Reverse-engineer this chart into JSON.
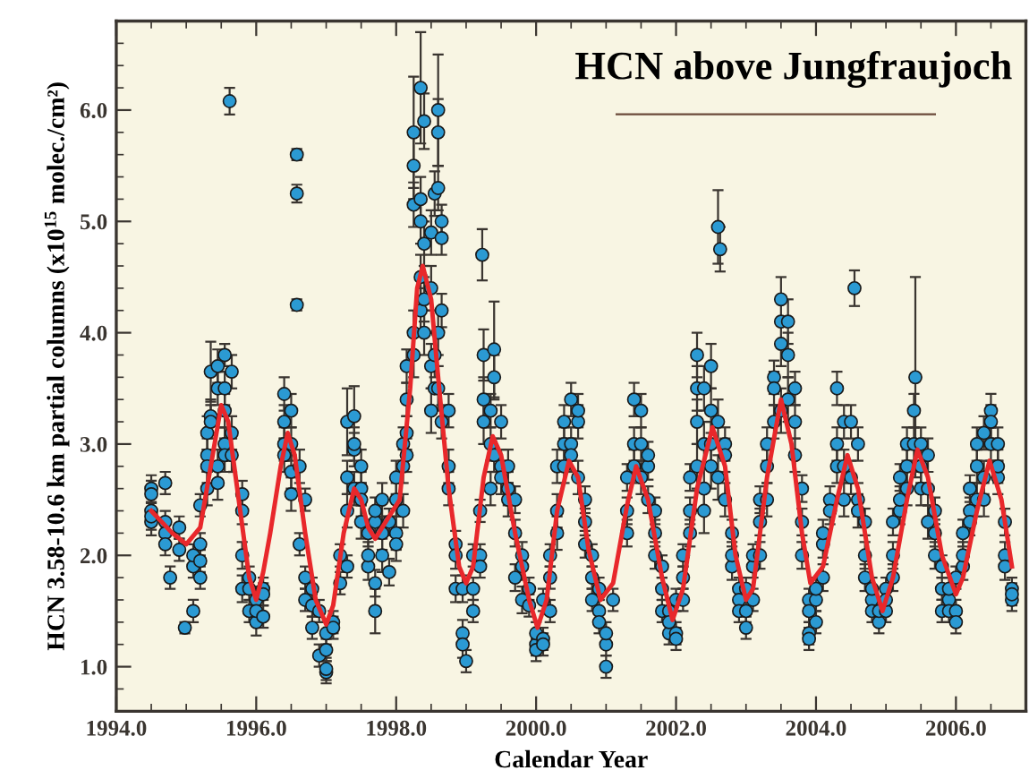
{
  "chart_data": {
    "type": "scatter",
    "title": "HCN above Jungfraujoch",
    "xlabel": "Calendar Year",
    "ylabel": "HCN 3.58-10.6 km partial columns (x10$^{15}$ molec./cm²)",
    "xlim": [
      1994.0,
      2007.0
    ],
    "ylim": [
      0.6,
      6.8
    ],
    "xticks": [
      {
        "value": 1994,
        "label": "1994.0"
      },
      {
        "value": 1996,
        "label": "1996.0"
      },
      {
        "value": 1998,
        "label": "1998.0"
      },
      {
        "value": 2000,
        "label": "2000.0"
      },
      {
        "value": 2002,
        "label": "2002.0"
      },
      {
        "value": 2004,
        "label": "2004.0"
      },
      {
        "value": 2006,
        "label": "2006.0"
      }
    ],
    "yticks": [
      {
        "value": 1,
        "label": "1.0"
      },
      {
        "value": 2,
        "label": "2.0"
      },
      {
        "value": 3,
        "label": "3.0"
      },
      {
        "value": 4,
        "label": "4.0"
      },
      {
        "value": 5,
        "label": "5.0"
      },
      {
        "value": 6,
        "label": "6.0"
      }
    ],
    "grid": false,
    "series": [
      {
        "color": "#2b9ad3",
        "marker": "circle",
        "x": [
          1994.5,
          1994.5,
          1994.5,
          1994.5,
          1994.5,
          1994.7,
          1994.7,
          1994.7,
          1994.7,
          1994.77,
          1994.9,
          1994.9,
          1994.98,
          1995.1,
          1995.1,
          1995.1,
          1995.2,
          1995.2,
          1995.2,
          1995.2,
          1995.3,
          1995.3,
          1995.3,
          1995.3,
          1995.35,
          1995.35,
          1995.35,
          1995.45,
          1995.45,
          1995.45,
          1995.45,
          1995.55,
          1995.55,
          1995.55,
          1995.55,
          1995.55,
          1995.62,
          1995.65,
          1995.65,
          1995.65,
          1995.8,
          1995.8,
          1995.8,
          1995.8,
          1995.9,
          1995.9,
          1995.9,
          1996.0,
          1996.0,
          1996.0,
          1996.1,
          1996.1,
          1996.1,
          1996.4,
          1996.4,
          1996.4,
          1996.4,
          1996.5,
          1996.5,
          1996.5,
          1996.5,
          1996.58,
          1996.58,
          1996.58,
          1996.62,
          1996.62,
          1996.7,
          1996.7,
          1996.7,
          1996.8,
          1996.8,
          1996.8,
          1996.9,
          1996.9,
          1997.0,
          1997.0,
          1997.0,
          1997.0,
          1997.1,
          1997.1,
          1997.2,
          1997.2,
          1997.3,
          1997.3,
          1997.3,
          1997.3,
          1997.4,
          1997.4,
          1997.4,
          1997.4,
          1997.5,
          1997.5,
          1997.5,
          1997.5,
          1997.6,
          1997.6,
          1997.6,
          1997.7,
          1997.7,
          1997.7,
          1997.7,
          1997.8,
          1997.8,
          1997.8,
          1997.9,
          1997.9,
          1998.0,
          1998.0,
          1998.0,
          1998.0,
          1998.1,
          1998.1,
          1998.1,
          1998.15,
          1998.15,
          1998.15,
          1998.15,
          1998.25,
          1998.25,
          1998.25,
          1998.25,
          1998.25,
          1998.35,
          1998.35,
          1998.35,
          1998.35,
          1998.35,
          1998.4,
          1998.4,
          1998.4,
          1998.4,
          1998.5,
          1998.5,
          1998.5,
          1998.5,
          1998.55,
          1998.55,
          1998.55,
          1998.6,
          1998.6,
          1998.6,
          1998.6,
          1998.6,
          1998.65,
          1998.65,
          1998.65,
          1998.65,
          1998.75,
          1998.75,
          1998.75,
          1998.85,
          1998.85,
          1998.85,
          1998.95,
          1998.95,
          1998.95,
          1999.0,
          1999.1,
          1999.1,
          1999.1,
          1999.2,
          1999.2,
          1999.2,
          1999.23,
          1999.25,
          1999.25,
          1999.25,
          1999.35,
          1999.35,
          1999.35,
          1999.4,
          1999.4,
          1999.4,
          1999.5,
          1999.5,
          1999.5,
          1999.6,
          1999.6,
          1999.6,
          1999.7,
          1999.7,
          1999.7,
          1999.8,
          1999.8,
          1999.8,
          1999.9,
          1999.9,
          2000.0,
          2000.0,
          2000.0,
          2000.1,
          2000.1,
          2000.1,
          2000.2,
          2000.2,
          2000.2,
          2000.3,
          2000.3,
          2000.3,
          2000.4,
          2000.4,
          2000.4,
          2000.5,
          2000.5,
          2000.5,
          2000.6,
          2000.6,
          2000.6,
          2000.7,
          2000.7,
          2000.7,
          2000.8,
          2000.8,
          2000.8,
          2000.9,
          2000.9,
          2000.9,
          2001.0,
          2001.0,
          2001.0,
          2001.1,
          2001.3,
          2001.3,
          2001.3,
          2001.4,
          2001.4,
          2001.4,
          2001.5,
          2001.5,
          2001.5,
          2001.6,
          2001.6,
          2001.6,
          2001.7,
          2001.7,
          2001.7,
          2001.8,
          2001.8,
          2001.8,
          2001.9,
          2001.9,
          2001.9,
          2002.0,
          2002.0,
          2002.0,
          2002.1,
          2002.1,
          2002.1,
          2002.2,
          2002.2,
          2002.2,
          2002.3,
          2002.3,
          2002.3,
          2002.3,
          2002.4,
          2002.4,
          2002.4,
          2002.4,
          2002.5,
          2002.5,
          2002.5,
          2002.5,
          2002.6,
          2002.63,
          2002.6,
          2002.6,
          2002.7,
          2002.7,
          2002.7,
          2002.8,
          2002.8,
          2002.8,
          2002.9,
          2002.9,
          2002.9,
          2003.0,
          2003.0,
          2003.0,
          2003.1,
          2003.1,
          2003.1,
          2003.2,
          2003.2,
          2003.2,
          2003.3,
          2003.3,
          2003.3,
          2003.4,
          2003.4,
          2003.4,
          2003.5,
          2003.5,
          2003.5,
          2003.5,
          2003.6,
          2003.6,
          2003.6,
          2003.7,
          2003.7,
          2003.7,
          2003.8,
          2003.8,
          2003.8,
          2003.9,
          2003.9,
          2003.9,
          2003.9,
          2004.0,
          2004.0,
          2004.0,
          2004.1,
          2004.1,
          2004.1,
          2004.2,
          2004.2,
          2004.3,
          2004.3,
          2004.3,
          2004.4,
          2004.4,
          2004.4,
          2004.55,
          2004.5,
          2004.5,
          2004.6,
          2004.6,
          2004.6,
          2004.7,
          2004.7,
          2004.7,
          2004.8,
          2004.8,
          2004.8,
          2004.9,
          2004.9,
          2005.0,
          2005.0,
          2005.0,
          2005.1,
          2005.1,
          2005.1,
          2005.2,
          2005.2,
          2005.2,
          2005.3,
          2005.3,
          2005.3,
          2005.4,
          2005.4,
          2005.42,
          2005.5,
          2005.5,
          2005.5,
          2005.6,
          2005.6,
          2005.6,
          2005.7,
          2005.7,
          2005.7,
          2005.8,
          2005.8,
          2005.8,
          2005.9,
          2005.9,
          2005.9,
          2006.0,
          2006.0,
          2006.0,
          2006.1,
          2006.1,
          2006.1,
          2006.2,
          2006.2,
          2006.2,
          2006.3,
          2006.3,
          2006.3,
          2006.4,
          2006.4,
          2006.4,
          2006.5,
          2006.5,
          2006.5,
          2006.6,
          2006.6,
          2006.6,
          2006.7,
          2006.7,
          2006.7,
          2006.8,
          2006.8,
          2006.8
        ],
        "values": [
          2.6,
          2.55,
          2.3,
          2.4,
          2.35,
          2.65,
          2.3,
          2.2,
          2.1,
          1.8,
          2.25,
          2.05,
          1.35,
          1.5,
          1.9,
          2.0,
          1.8,
          1.95,
          2.45,
          2.1,
          2.6,
          2.9,
          2.8,
          3.1,
          3.65,
          3.25,
          3.2,
          2.8,
          2.65,
          3.5,
          3.7,
          3.8,
          3.5,
          3.3,
          3.0,
          2.9,
          6.08,
          3.65,
          3.1,
          2.9,
          2.55,
          2.4,
          2.0,
          1.7,
          1.8,
          1.7,
          1.5,
          1.6,
          1.4,
          1.5,
          1.7,
          1.45,
          1.65,
          3.2,
          3.0,
          3.45,
          2.9,
          3.3,
          3.0,
          2.75,
          2.55,
          5.6,
          5.25,
          4.25,
          2.8,
          2.1,
          2.5,
          1.8,
          1.6,
          1.7,
          1.35,
          1.55,
          1.1,
          1.5,
          0.95,
          0.98,
          1.15,
          1.3,
          1.4,
          1.35,
          2.0,
          1.75,
          2.4,
          2.7,
          3.2,
          1.9,
          3.25,
          2.95,
          2.6,
          3.0,
          2.8,
          2.6,
          2.5,
          2.3,
          2.2,
          1.9,
          2.0,
          1.5,
          1.75,
          2.3,
          2.4,
          2.5,
          2.2,
          2.0,
          1.85,
          2.3,
          2.2,
          2.7,
          2.1,
          2.5,
          2.8,
          3.0,
          2.4,
          3.7,
          3.4,
          3.1,
          2.9,
          5.5,
          5.8,
          5.15,
          4.0,
          3.8,
          6.2,
          5.2,
          5.0,
          4.5,
          4.2,
          5.9,
          4.8,
          4.3,
          4.0,
          4.9,
          4.4,
          3.7,
          3.3,
          5.25,
          3.8,
          3.5,
          6.0,
          5.8,
          5.3,
          4.0,
          3.5,
          5.0,
          4.85,
          4.2,
          3.2,
          3.3,
          2.8,
          2.6,
          2.1,
          2.0,
          1.7,
          1.7,
          1.3,
          1.2,
          1.05,
          1.5,
          1.7,
          2.0,
          2.0,
          2.4,
          1.9,
          4.7,
          3.2,
          3.8,
          3.4,
          3.3,
          2.6,
          3.0,
          3.85,
          3.6,
          2.9,
          3.2,
          2.8,
          2.7,
          2.8,
          2.5,
          2.6,
          2.5,
          2.2,
          1.8,
          2.0,
          1.6,
          1.9,
          1.7,
          1.55,
          1.2,
          1.3,
          1.15,
          1.25,
          1.6,
          1.2,
          1.5,
          1.8,
          2.0,
          2.4,
          2.8,
          2.2,
          3.0,
          2.8,
          3.2,
          3.4,
          3.0,
          2.9,
          3.2,
          3.3,
          2.7,
          2.5,
          2.1,
          2.3,
          2.0,
          1.8,
          1.6,
          1.5,
          1.4,
          1.7,
          1.2,
          1.0,
          1.3,
          1.6,
          2.4,
          2.2,
          2.7,
          3.4,
          3.0,
          2.8,
          3.3,
          3.0,
          2.7,
          2.8,
          2.5,
          2.9,
          2.4,
          2.0,
          2.2,
          1.9,
          1.7,
          1.5,
          1.5,
          1.3,
          1.4,
          1.3,
          1.25,
          1.6,
          1.8,
          2.0,
          1.6,
          2.4,
          2.7,
          2.2,
          3.2,
          3.8,
          2.8,
          3.5,
          3.5,
          3.0,
          2.4,
          2.6,
          3.3,
          3.0,
          2.8,
          3.7,
          4.95,
          4.75,
          3.2,
          2.7,
          3.0,
          2.9,
          2.5,
          2.2,
          1.9,
          2.0,
          1.7,
          1.6,
          1.5,
          1.5,
          1.35,
          1.7,
          1.9,
          1.6,
          2.0,
          2.3,
          2.0,
          2.5,
          2.8,
          3.0,
          2.5,
          3.6,
          3.2,
          3.5,
          3.9,
          4.3,
          4.1,
          3.3,
          3.8,
          4.1,
          3.4,
          3.5,
          3.2,
          2.9,
          2.6,
          2.3,
          2.0,
          1.6,
          1.5,
          1.3,
          1.25,
          1.4,
          1.6,
          1.7,
          1.8,
          2.1,
          2.2,
          2.5,
          2.4,
          3.5,
          3.0,
          2.8,
          3.2,
          2.8,
          2.5,
          4.4,
          3.2,
          2.7,
          3.0,
          2.5,
          2.4,
          2.3,
          2.0,
          1.8,
          1.6,
          1.5,
          1.7,
          1.4,
          1.5,
          1.5,
          1.7,
          1.6,
          1.8,
          2.0,
          2.3,
          2.4,
          2.7,
          2.5,
          3.0,
          2.8,
          2.6,
          3.3,
          3.0,
          3.6,
          3.0,
          2.8,
          2.6,
          2.6,
          2.3,
          2.9,
          2.2,
          2.0,
          2.4,
          1.9,
          1.7,
          1.5,
          1.6,
          1.5,
          1.7,
          1.5,
          1.8,
          1.4,
          1.9,
          2.0,
          2.2,
          2.4,
          2.6,
          2.3,
          2.8,
          2.5,
          3.0,
          3.1,
          2.7,
          2.5,
          3.3,
          3.0,
          3.2,
          3.0,
          2.7,
          2.8,
          2.3,
          2.0,
          1.9,
          1.7,
          1.6,
          1.65
        ],
        "errors": [
          0.12,
          0.12,
          0.12,
          0.12,
          0.12,
          0.1,
          0.1,
          null,
          0.1,
          0.1,
          0.1,
          0.1,
          0.05,
          0.1,
          0.1,
          0.1,
          0.1,
          0.1,
          0.1,
          0.1,
          0.15,
          0.15,
          0.15,
          0.15,
          0.27,
          0.15,
          0.15,
          0.15,
          0.15,
          0.15,
          0.15,
          0.1,
          0.15,
          0.15,
          0.15,
          0.15,
          0.12,
          0.15,
          0.15,
          0.15,
          0.12,
          0.12,
          0.12,
          0.12,
          0.1,
          0.1,
          0.1,
          0.12,
          0.12,
          0.12,
          0.1,
          0.1,
          0.1,
          0.15,
          0.15,
          0.15,
          0.15,
          0.15,
          0.15,
          0.15,
          0.15,
          0.05,
          0.08,
          0.05,
          0.15,
          0.1,
          0.1,
          0.1,
          0.1,
          0.1,
          0.1,
          0.1,
          0.1,
          0.1,
          0.1,
          0.1,
          0.1,
          0.1,
          0.1,
          0.1,
          0.1,
          0.1,
          0.15,
          0.15,
          0.3,
          0.1,
          0.27,
          0.15,
          0.15,
          0.15,
          0.15,
          0.15,
          0.15,
          0.15,
          0.12,
          0.12,
          0.12,
          0.2,
          0.12,
          0.12,
          0.12,
          0.15,
          0.15,
          0.15,
          0.12,
          0.12,
          0.15,
          0.15,
          0.15,
          0.15,
          0.15,
          0.15,
          0.15,
          0.15,
          0.15,
          0.15,
          0.15,
          0.3,
          0.5,
          0.2,
          0.2,
          0.2,
          0.5,
          0.2,
          0.2,
          0.2,
          0.2,
          0.25,
          0.2,
          0.2,
          0.2,
          0.2,
          0.2,
          0.2,
          0.2,
          0.2,
          0.2,
          null,
          0.5,
          0.3,
          0.2,
          0.2,
          0.2,
          0.15,
          0.15,
          0.15,
          0.15,
          0.15,
          0.15,
          0.15,
          0.12,
          0.12,
          0.12,
          0.12,
          0.12,
          0.12,
          0.1,
          0.1,
          0.1,
          0.1,
          0.1,
          0.1,
          0.1,
          0.23,
          0.2,
          0.23,
          0.2,
          0.15,
          0.15,
          0.15,
          0.43,
          0.2,
          0.15,
          0.15,
          0.15,
          0.15,
          0.15,
          0.15,
          0.15,
          0.12,
          0.12,
          0.12,
          0.12,
          0.12,
          0.12,
          0.1,
          0.1,
          0.1,
          0.1,
          0.1,
          0.1,
          0.1,
          0.1,
          0.1,
          0.1,
          0.1,
          0.15,
          0.15,
          0.15,
          0.15,
          0.15,
          0.15,
          0.15,
          0.15,
          0.15,
          0.15,
          0.15,
          0.15,
          0.12,
          0.12,
          0.12,
          0.1,
          0.1,
          0.1,
          0.1,
          0.1,
          0.1,
          0.1,
          0.1,
          0.1,
          0.1,
          0.12,
          0.12,
          0.12,
          0.15,
          0.15,
          0.15,
          0.15,
          0.15,
          0.15,
          0.12,
          0.12,
          0.12,
          0.12,
          0.12,
          0.12,
          0.1,
          0.1,
          0.1,
          0.1,
          0.1,
          0.1,
          0.1,
          0.1,
          0.1,
          0.1,
          0.1,
          0.1,
          0.12,
          0.12,
          0.12,
          0.2,
          0.2,
          0.2,
          0.2,
          0.2,
          0.2,
          0.2,
          0.2,
          0.2,
          0.2,
          0.2,
          0.2,
          0.33,
          0.2,
          0.2,
          0.2,
          0.15,
          0.15,
          0.15,
          0.12,
          0.12,
          0.12,
          0.1,
          0.1,
          0.1,
          0.1,
          0.1,
          0.1,
          0.1,
          0.1,
          0.1,
          0.12,
          0.12,
          0.12,
          0.15,
          0.15,
          0.15,
          0.15,
          0.15,
          0.15,
          0.2,
          0.2,
          null,
          0.2,
          0.2,
          0.2,
          0.2,
          0.15,
          0.15,
          0.15,
          0.12,
          0.12,
          0.12,
          0.1,
          0.1,
          0.1,
          0.1,
          0.1,
          0.1,
          0.1,
          0.12,
          0.12,
          0.12,
          0.12,
          0.12,
          0.15,
          0.15,
          0.15,
          0.15,
          0.15,
          0.15,
          0.16,
          0.15,
          0.15,
          0.15,
          0.15,
          0.15,
          0.12,
          0.12,
          0.12,
          0.1,
          0.1,
          0.1,
          0.1,
          0.1,
          0.1,
          0.1,
          0.1,
          0.12,
          0.12,
          0.12,
          0.12,
          0.12,
          0.12,
          0.15,
          0.15,
          0.15,
          0.15,
          0.15,
          0.9,
          0.15,
          0.15,
          0.15,
          0.15,
          0.15,
          0.15,
          0.12,
          0.12,
          0.12,
          0.1,
          0.1,
          0.1,
          0.1,
          0.1,
          0.1,
          0.1,
          0.1,
          0.1,
          0.12,
          0.12,
          0.12,
          0.12,
          0.12,
          0.12,
          0.15,
          0.15,
          0.15,
          0.15,
          0.15,
          0.15,
          0.15,
          0.15,
          0.15,
          0.15,
          0.15,
          0.15,
          0.12,
          0.12,
          0.12,
          0.1,
          0.1,
          0.1
        ]
      },
      {
        "type": "line",
        "color": "#e8282b",
        "x": [
          1994.5,
          1994.8,
          1995.0,
          1995.2,
          1995.35,
          1995.5,
          1995.6,
          1995.75,
          1995.9,
          1996.0,
          1996.1,
          1996.2,
          1996.35,
          1996.45,
          1996.55,
          1996.7,
          1996.85,
          1997.0,
          1997.1,
          1997.25,
          1997.4,
          1997.5,
          1997.6,
          1997.7,
          1997.8,
          1997.95,
          1998.05,
          1998.2,
          1998.3,
          1998.38,
          1998.5,
          1998.6,
          1998.75,
          1998.9,
          1999.0,
          1999.1,
          1999.25,
          1999.38,
          1999.5,
          1999.7,
          1999.9,
          2000.02,
          2000.15,
          2000.3,
          2000.47,
          2000.6,
          2000.75,
          2000.92,
          2001.1,
          2001.3,
          2001.43,
          2001.6,
          2001.8,
          2001.95,
          2002.1,
          2002.3,
          2002.52,
          2002.7,
          2002.85,
          2003.0,
          2003.1,
          2003.3,
          2003.5,
          2003.65,
          2003.8,
          2003.92,
          2004.1,
          2004.3,
          2004.45,
          2004.6,
          2004.8,
          2004.95,
          2005.1,
          2005.3,
          2005.45,
          2005.6,
          2005.8,
          2006.0,
          2006.1,
          2006.3,
          2006.48,
          2006.65,
          2006.8
        ],
        "values": [
          2.4,
          2.2,
          2.1,
          2.25,
          2.8,
          3.35,
          3.2,
          2.5,
          1.8,
          1.6,
          1.85,
          2.2,
          2.8,
          3.1,
          2.9,
          2.2,
          1.6,
          1.38,
          1.55,
          2.2,
          2.6,
          2.5,
          2.25,
          2.15,
          2.25,
          2.4,
          2.5,
          3.5,
          4.4,
          4.6,
          4.3,
          3.6,
          2.6,
          1.9,
          1.75,
          1.9,
          2.7,
          3.07,
          2.9,
          2.2,
          1.6,
          1.35,
          1.6,
          2.4,
          2.85,
          2.7,
          2.05,
          1.6,
          1.75,
          2.45,
          2.8,
          2.5,
          1.8,
          1.42,
          1.7,
          2.6,
          3.15,
          2.8,
          2.0,
          1.6,
          1.7,
          2.7,
          3.4,
          3.0,
          2.2,
          1.75,
          1.9,
          2.5,
          2.9,
          2.6,
          1.8,
          1.5,
          1.8,
          2.5,
          2.95,
          2.7,
          2.0,
          1.65,
          1.8,
          2.4,
          2.85,
          2.5,
          1.9
        ]
      }
    ]
  }
}
